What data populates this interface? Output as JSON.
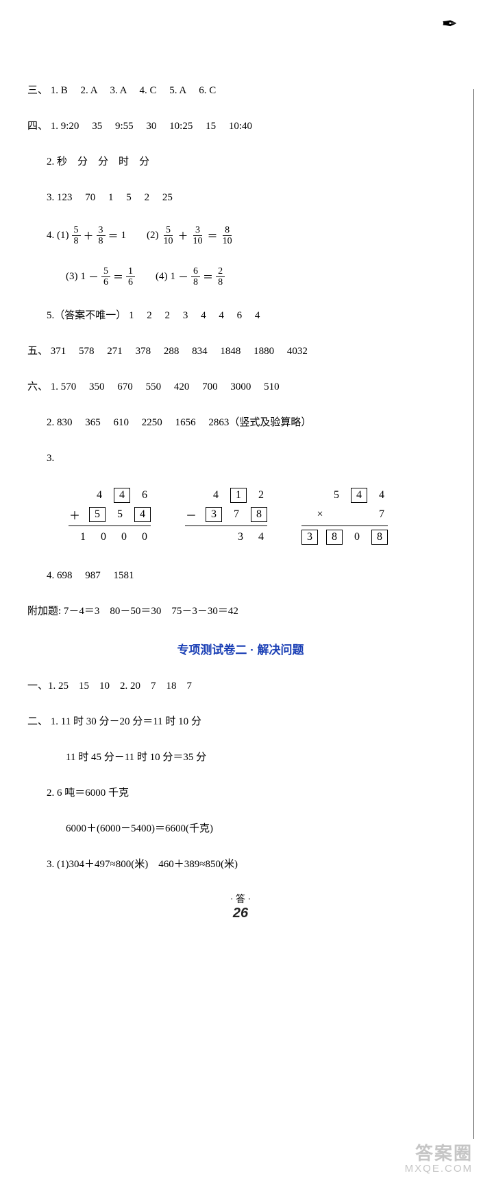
{
  "colors": {
    "text": "#000000",
    "section_title": "#1a3fb5",
    "background": "#ffffff",
    "watermark": "rgba(150,150,150,0.55)"
  },
  "topmark_glyph": "✒",
  "q3": {
    "label": "三、",
    "items": [
      "1. B",
      "2. A",
      "3. A",
      "4. C",
      "5. A",
      "6. C"
    ]
  },
  "q4": {
    "label": "四、",
    "row1": [
      "1. 9:20",
      "35",
      "9:55",
      "30",
      "10:25",
      "15",
      "10:40"
    ],
    "row2": "2. 秒　分　分　时　分",
    "row3": [
      "3. 123",
      "70",
      "1",
      "5",
      "2",
      "25"
    ],
    "fr": {
      "p1_label": "4. (1)",
      "p1": {
        "a_n": "5",
        "a_d": "8",
        "b_n": "3",
        "b_d": "8",
        "res": "1"
      },
      "p2_label": "(2)",
      "p2": {
        "a_n": "5",
        "a_d": "10",
        "b_n": "3",
        "b_d": "10",
        "r_n": "8",
        "r_d": "10"
      },
      "p3_label": "(3)",
      "p3": {
        "a": "1",
        "b_n": "5",
        "b_d": "6",
        "r_n": "1",
        "r_d": "6"
      },
      "p4_label": "(4)",
      "p4": {
        "a": "1",
        "b_n": "6",
        "b_d": "8",
        "r_n": "2",
        "r_d": "8"
      }
    },
    "row5_label": "5.（答案不唯一）",
    "row5_vals": [
      "1",
      "2",
      "2",
      "3",
      "4",
      "4",
      "6",
      "4"
    ]
  },
  "q5": {
    "label": "五、",
    "vals": [
      "371",
      "578",
      "271",
      "378",
      "288",
      "834",
      "1848",
      "1880",
      "4032"
    ]
  },
  "q6": {
    "label": "六、",
    "row1": [
      "1. 570",
      "350",
      "670",
      "550",
      "420",
      "700",
      "3000",
      "510"
    ],
    "row2": [
      "2. 830",
      "365",
      "610",
      "2250",
      "1656",
      "2863（竖式及验算略）"
    ],
    "row3_label": "3.",
    "arith": {
      "a": {
        "r1": [
          {
            "t": "d",
            "v": "4"
          },
          {
            "t": "b",
            "v": "4"
          },
          {
            "t": "d",
            "v": "6"
          }
        ],
        "r2": [
          {
            "t": "op",
            "v": "＋"
          },
          {
            "t": "b",
            "v": "5"
          },
          {
            "t": "d",
            "v": "5"
          },
          {
            "t": "b",
            "v": "4"
          }
        ],
        "r3": [
          {
            "t": "d",
            "v": "1"
          },
          {
            "t": "d",
            "v": "0"
          },
          {
            "t": "d",
            "v": "0"
          },
          {
            "t": "d",
            "v": "0"
          }
        ]
      },
      "b": {
        "r1": [
          {
            "t": "d",
            "v": "4"
          },
          {
            "t": "b",
            "v": "1"
          },
          {
            "t": "d",
            "v": "2"
          }
        ],
        "r2": [
          {
            "t": "op",
            "v": "－"
          },
          {
            "t": "b",
            "v": "3"
          },
          {
            "t": "d",
            "v": "7"
          },
          {
            "t": "b",
            "v": "8"
          }
        ],
        "r3": [
          {
            "t": "d",
            "v": ""
          },
          {
            "t": "d",
            "v": ""
          },
          {
            "t": "d",
            "v": "3"
          },
          {
            "t": "d",
            "v": "4"
          }
        ]
      },
      "c": {
        "r1": [
          {
            "t": "d",
            "v": "5"
          },
          {
            "t": "b",
            "v": "4"
          },
          {
            "t": "d",
            "v": "4"
          }
        ],
        "r2": [
          {
            "t": "op",
            "v": "×"
          },
          {
            "t": "d",
            "v": ""
          },
          {
            "t": "d",
            "v": ""
          },
          {
            "t": "d",
            "v": "7"
          }
        ],
        "r3": [
          {
            "t": "b",
            "v": "3"
          },
          {
            "t": "b",
            "v": "8"
          },
          {
            "t": "d",
            "v": "0"
          },
          {
            "t": "b",
            "v": "8"
          }
        ]
      }
    },
    "row4": [
      "4. 698",
      "987",
      "1581"
    ]
  },
  "bonus": "附加题: 7－4＝3　80－50＝30　75－3－30＝42",
  "section2_title": "专项测试卷二 · 解决问题",
  "s2q1": "一、1. 25　15　10　2. 20　7　18　7",
  "s2q2": {
    "label": "二、",
    "l1": "1. 11 时 30 分－20 分＝11 时 10 分",
    "l2": "11 时 45 分－11 时 10 分＝35 分",
    "l3": "2. 6 吨＝6000 千克",
    "l4": "6000＋(6000－5400)＝6600(千克)",
    "l5": "3. (1)304＋497≈800(米)　460＋389≈850(米)"
  },
  "footer": {
    "dot_left": "·",
    "mid": "答",
    "dot_right": "·",
    "page": "26"
  },
  "watermark": {
    "l1": "答案圈",
    "l2": "MXQE.COM"
  }
}
